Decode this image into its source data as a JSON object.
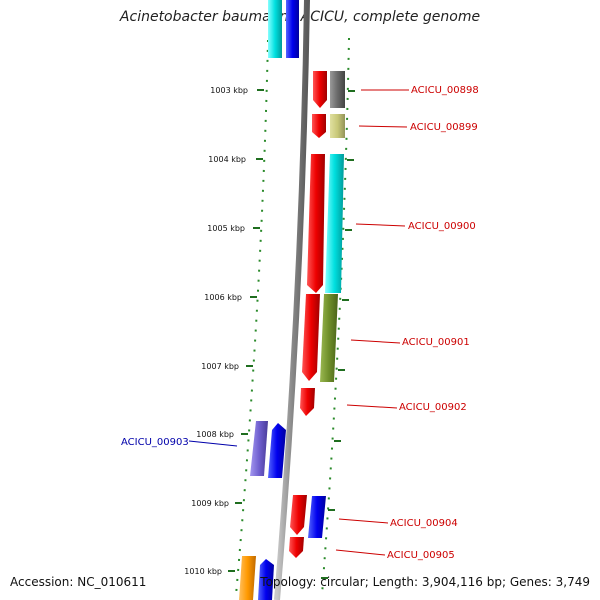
{
  "title": "Acinetobacter baumannii ACICU, complete genome",
  "footer": {
    "accession_label": "Accession:",
    "accession": "NC_010611",
    "topology_label": "Topology:",
    "topology": "circular;",
    "length_label": "Length:",
    "length": "3,904,116 bp;",
    "genes_label": "Genes:",
    "genes": "3,749"
  },
  "ticks": [
    "1003 kbp",
    "1004 kbp",
    "1005 kbp",
    "1006 kbp",
    "1007 kbp",
    "1008 kbp",
    "1009 kbp",
    "1010 kbp"
  ],
  "gene_labels": [
    "ACICU_00898",
    "ACICU_00899",
    "ACICU_00900",
    "ACICU_00901",
    "ACICU_00902",
    "ACICU_00903",
    "ACICU_00904",
    "ACICU_00905"
  ],
  "colors": {
    "backbone": "#8a8a8a",
    "tick": "#1f6e1f",
    "label_forward": "#cc0000",
    "label_reverse": "#0000aa",
    "cds_forward": "#ee0000",
    "cds_reverse": "#0000ee"
  }
}
